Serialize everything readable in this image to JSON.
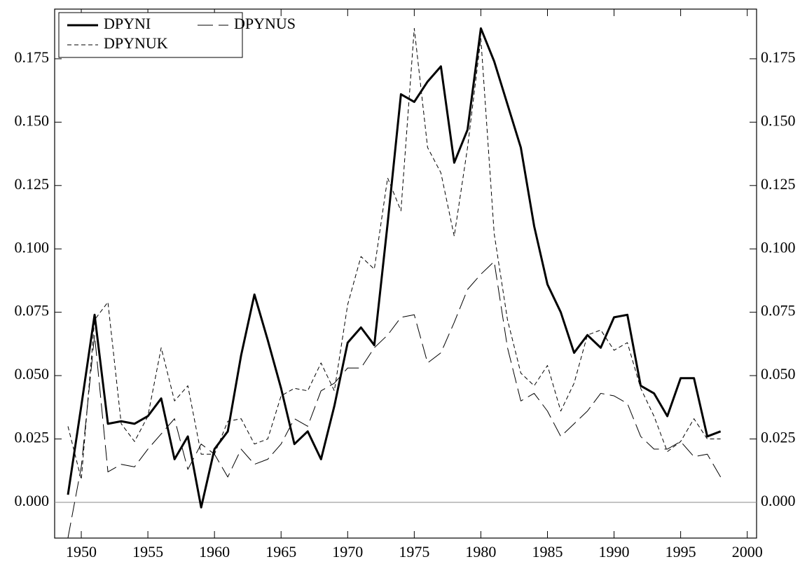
{
  "chart_data": {
    "type": "line",
    "x": [
      1949,
      1950,
      1951,
      1952,
      1953,
      1954,
      1955,
      1956,
      1957,
      1958,
      1959,
      1960,
      1961,
      1962,
      1963,
      1964,
      1965,
      1966,
      1967,
      1968,
      1969,
      1970,
      1971,
      1972,
      1973,
      1974,
      1975,
      1976,
      1977,
      1978,
      1979,
      1980,
      1981,
      1982,
      1983,
      1984,
      1985,
      1986,
      1987,
      1988,
      1989,
      1990,
      1991,
      1992,
      1993,
      1994,
      1995,
      1996,
      1997,
      1998
    ],
    "series": [
      {
        "name": "DPYNI",
        "color": "#000000",
        "style": "thick",
        "values": [
          0.003,
          0.038,
          0.074,
          0.031,
          0.032,
          0.031,
          0.034,
          0.041,
          0.017,
          0.026,
          -0.002,
          0.021,
          0.028,
          0.058,
          0.082,
          0.064,
          0.045,
          0.023,
          0.028,
          0.017,
          0.038,
          0.063,
          0.069,
          0.062,
          0.11,
          0.161,
          0.158,
          0.166,
          0.172,
          0.134,
          0.147,
          0.187,
          0.174,
          0.157,
          0.14,
          0.109,
          0.086,
          0.075,
          0.059,
          0.066,
          0.061,
          0.073,
          0.074,
          0.046,
          0.043,
          0.034,
          0.049,
          0.049,
          0.026,
          0.028
        ]
      },
      {
        "name": "DPYNUS",
        "color": "#000000",
        "style": "long-dash",
        "values": [
          -0.014,
          0.014,
          0.066,
          0.012,
          0.015,
          0.014,
          0.021,
          0.027,
          0.033,
          0.013,
          0.023,
          0.019,
          0.01,
          0.021,
          0.015,
          0.017,
          0.023,
          0.033,
          0.03,
          0.044,
          0.047,
          0.053,
          0.053,
          0.061,
          0.066,
          0.073,
          0.074,
          0.055,
          0.059,
          0.071,
          0.084,
          0.09,
          0.095,
          0.061,
          0.04,
          0.043,
          0.036,
          0.026,
          0.031,
          0.036,
          0.043,
          0.042,
          0.039,
          0.026,
          0.021,
          0.021,
          0.024,
          0.018,
          0.019,
          0.01
        ]
      },
      {
        "name": "DPYNUK",
        "color": "#000000",
        "style": "short-dash",
        "values": [
          0.03,
          0.009,
          0.072,
          0.079,
          0.031,
          0.024,
          0.034,
          0.061,
          0.04,
          0.046,
          0.019,
          0.019,
          0.032,
          0.033,
          0.023,
          0.025,
          0.042,
          0.045,
          0.044,
          0.055,
          0.044,
          0.078,
          0.097,
          0.092,
          0.128,
          0.115,
          0.187,
          0.14,
          0.13,
          0.105,
          0.14,
          0.183,
          0.106,
          0.072,
          0.051,
          0.046,
          0.054,
          0.036,
          0.047,
          0.066,
          0.068,
          0.06,
          0.063,
          0.045,
          0.034,
          0.02,
          0.024,
          0.033,
          0.025,
          0.025
        ]
      }
    ],
    "xlim": [
      1948,
      2000.7
    ],
    "xticks": [
      1950,
      1955,
      1960,
      1965,
      1970,
      1975,
      1980,
      1985,
      1990,
      1995,
      2000
    ],
    "ylim": [
      -0.0141,
      0.1946
    ],
    "yticks": [
      {
        "value": 0,
        "label": "0.000"
      },
      {
        "value": 0.025,
        "label": "0.025"
      },
      {
        "value": 0.05,
        "label": "0.050"
      },
      {
        "value": 0.075,
        "label": "0.075"
      },
      {
        "value": 0.1,
        "label": "0.100"
      },
      {
        "value": 0.125,
        "label": "0.125"
      },
      {
        "value": 0.15,
        "label": "0.150"
      },
      {
        "value": 0.175,
        "label": "0.175"
      }
    ],
    "right_axis_labels": true,
    "zero_line": true,
    "legend": "top-left"
  }
}
